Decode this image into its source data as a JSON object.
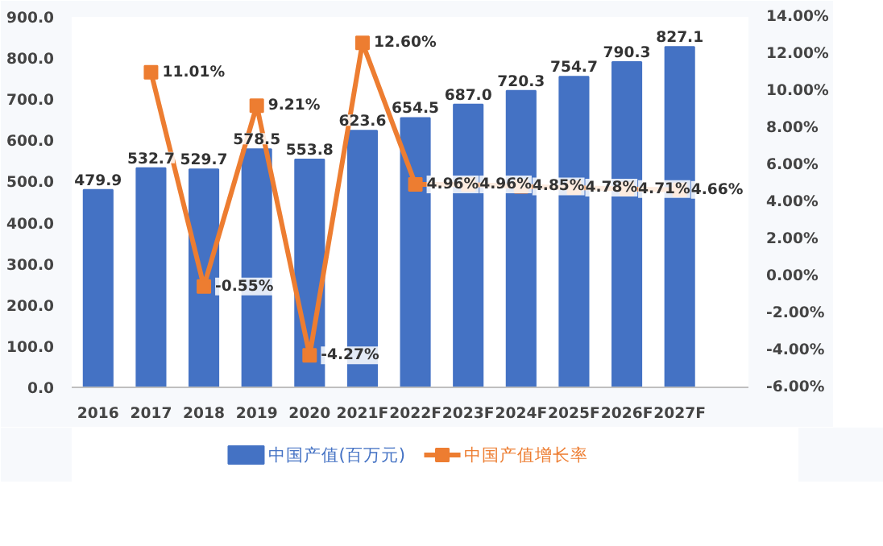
{
  "chart_data": {
    "type": "bar",
    "categories": [
      "2016",
      "2017",
      "2018",
      "2019",
      "2020",
      "2021F",
      "2022F",
      "2023F",
      "2024F",
      "2025F",
      "2026F",
      "2027F"
    ],
    "series": [
      {
        "name": "中国产值(百万元)",
        "color": "#4472c4",
        "values": [
          479.9,
          532.7,
          529.7,
          578.5,
          553.8,
          623.6,
          654.5,
          687.0,
          720.3,
          754.7,
          790.3,
          827.1
        ],
        "value_labels": [
          "479.9",
          "532.7",
          "529.7",
          "578.5",
          "553.8",
          "623.6",
          "654.5",
          "687.0",
          "720.3",
          "754.7",
          "790.3",
          "827.1"
        ]
      },
      {
        "name": "中国产值增长率",
        "type": "line",
        "axis": "y2",
        "color": "#ed7d31",
        "values": [
          null,
          11.01,
          -0.55,
          9.21,
          -4.27,
          12.6,
          4.96,
          4.96,
          4.85,
          4.78,
          4.71,
          4.66
        ],
        "value_labels": [
          null,
          "11.01%",
          "-0.55%",
          "9.21%",
          "-4.27%",
          "12.60%",
          "4.96%",
          "4.96%",
          "4.85%",
          "4.78%",
          "4.71%",
          "4.66%"
        ]
      }
    ],
    "ylim": [
      0,
      900
    ],
    "yticks": [
      {
        "value": 0,
        "label": "0.0"
      },
      {
        "value": 100,
        "label": "100.0"
      },
      {
        "value": 200,
        "label": "200.0"
      },
      {
        "value": 300,
        "label": "300.0"
      },
      {
        "value": 400,
        "label": "400.0"
      },
      {
        "value": 500,
        "label": "500.0"
      },
      {
        "value": 600,
        "label": "600.0"
      },
      {
        "value": 700,
        "label": "700.0"
      },
      {
        "value": 800,
        "label": "800.0"
      },
      {
        "value": 900,
        "label": "900.0"
      }
    ],
    "y2lim": [
      -6,
      14
    ],
    "y2ticks": [
      {
        "value": -6,
        "label": "-6.00%"
      },
      {
        "value": -4,
        "label": "-4.00%"
      },
      {
        "value": -2,
        "label": "-2.00%"
      },
      {
        "value": 0,
        "label": "0.00%"
      },
      {
        "value": 2,
        "label": "2.00%"
      },
      {
        "value": 4,
        "label": "4.00%"
      },
      {
        "value": 6,
        "label": "6.00%"
      },
      {
        "value": 8,
        "label": "8.00%"
      },
      {
        "value": 10,
        "label": "10.00%"
      },
      {
        "value": 12,
        "label": "12.00%"
      },
      {
        "value": 14,
        "label": "14.00%"
      }
    ],
    "legend": "bottom",
    "marker": "square",
    "line_style": "solid"
  }
}
